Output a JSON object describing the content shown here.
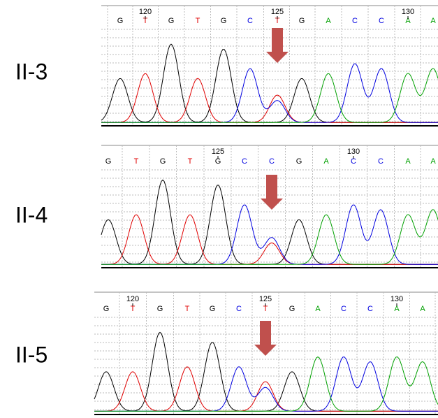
{
  "panels": [
    {
      "label": "II-3",
      "bases": [
        "G",
        "T",
        "G",
        "T",
        "G",
        "C",
        "T",
        "G",
        "A",
        "C",
        "C",
        "A",
        "A"
      ],
      "positions": [
        "120",
        "125",
        "130"
      ]
    },
    {
      "label": "II-4",
      "bases": [
        "G",
        "T",
        "G",
        "T",
        "G",
        "C",
        "C",
        "G",
        "A",
        "C",
        "C",
        "A",
        "A"
      ],
      "positions": [
        "125",
        "130"
      ]
    },
    {
      "label": "II-5",
      "bases": [
        "G",
        "T",
        "G",
        "T",
        "G",
        "C",
        "T",
        "G",
        "A",
        "C",
        "C",
        "A",
        "A"
      ],
      "positions": [
        "120",
        "125",
        "130"
      ]
    }
  ]
}
